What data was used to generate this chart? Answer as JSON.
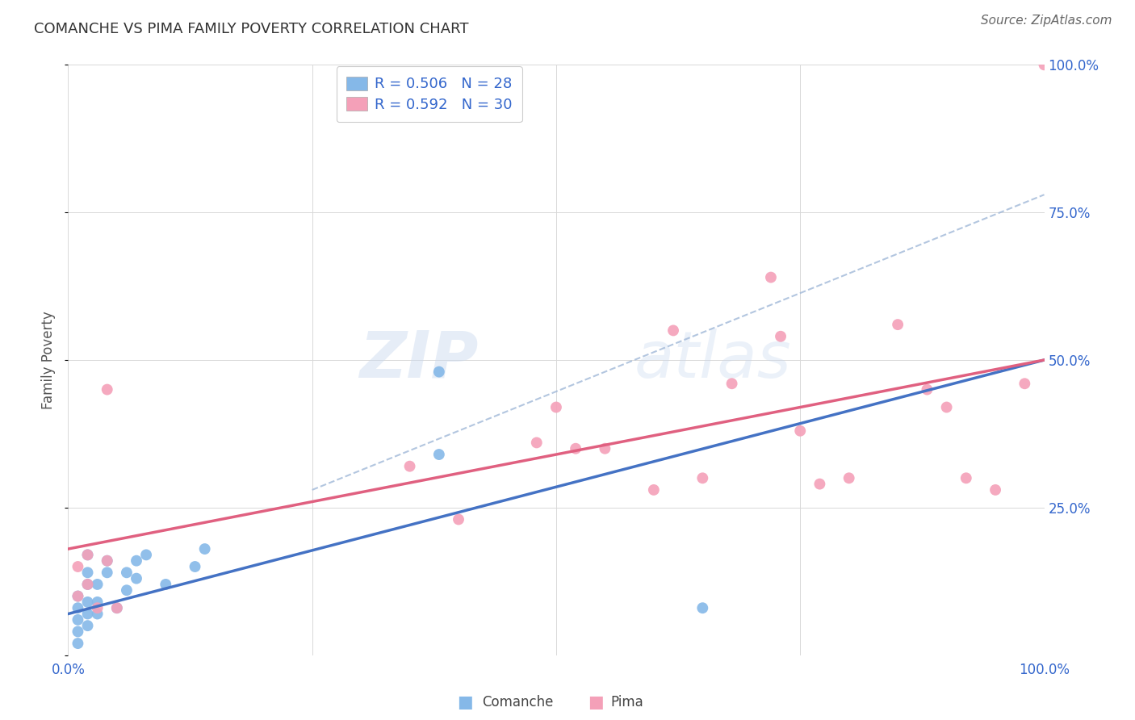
{
  "title": "COMANCHE VS PIMA FAMILY POVERTY CORRELATION CHART",
  "source": "Source: ZipAtlas.com",
  "ylabel": "Family Poverty",
  "xlim": [
    0.0,
    1.0
  ],
  "ylim": [
    0.0,
    1.0
  ],
  "xticks": [
    0.0,
    0.25,
    0.5,
    0.75,
    1.0
  ],
  "yticks": [
    0.0,
    0.25,
    0.5,
    0.75,
    1.0
  ],
  "comanche_R": 0.506,
  "comanche_N": 28,
  "pima_R": 0.592,
  "pima_N": 30,
  "comanche_color": "#85b8e8",
  "pima_color": "#f4a0b8",
  "comanche_line_color": "#4472c4",
  "pima_line_color": "#e06080",
  "dashed_line_color": "#a0b8d8",
  "background_color": "#ffffff",
  "grid_color": "#d8d8d8",
  "watermark_zip": "ZIP",
  "watermark_atlas": "atlas",
  "comanche_x": [
    0.01,
    0.01,
    0.01,
    0.01,
    0.01,
    0.02,
    0.02,
    0.02,
    0.02,
    0.02,
    0.02,
    0.03,
    0.03,
    0.03,
    0.04,
    0.04,
    0.05,
    0.06,
    0.06,
    0.07,
    0.07,
    0.08,
    0.1,
    0.13,
    0.14,
    0.38,
    0.38,
    0.65
  ],
  "comanche_y": [
    0.02,
    0.04,
    0.06,
    0.08,
    0.1,
    0.05,
    0.07,
    0.09,
    0.12,
    0.14,
    0.17,
    0.07,
    0.09,
    0.12,
    0.14,
    0.16,
    0.08,
    0.11,
    0.14,
    0.13,
    0.16,
    0.17,
    0.12,
    0.15,
    0.18,
    0.34,
    0.48,
    0.08
  ],
  "pima_x": [
    0.01,
    0.01,
    0.02,
    0.02,
    0.03,
    0.04,
    0.04,
    0.05,
    0.35,
    0.4,
    0.48,
    0.5,
    0.52,
    0.55,
    0.6,
    0.62,
    0.65,
    0.68,
    0.72,
    0.73,
    0.75,
    0.77,
    0.8,
    0.85,
    0.88,
    0.9,
    0.92,
    0.95,
    0.98,
    1.0
  ],
  "pima_y": [
    0.1,
    0.15,
    0.12,
    0.17,
    0.08,
    0.16,
    0.45,
    0.08,
    0.32,
    0.23,
    0.36,
    0.42,
    0.35,
    0.35,
    0.28,
    0.55,
    0.3,
    0.46,
    0.64,
    0.54,
    0.38,
    0.29,
    0.3,
    0.56,
    0.45,
    0.42,
    0.3,
    0.28,
    0.46,
    1.0
  ],
  "comanche_line_x0": 0.0,
  "comanche_line_y0": 0.07,
  "comanche_line_x1": 1.0,
  "comanche_line_y1": 0.5,
  "pima_line_x0": 0.0,
  "pima_line_y0": 0.18,
  "pima_line_x1": 1.0,
  "pima_line_y1": 0.5,
  "dashed_line_x0": 0.25,
  "dashed_line_y0": 0.28,
  "dashed_line_x1": 1.0,
  "dashed_line_y1": 0.78
}
